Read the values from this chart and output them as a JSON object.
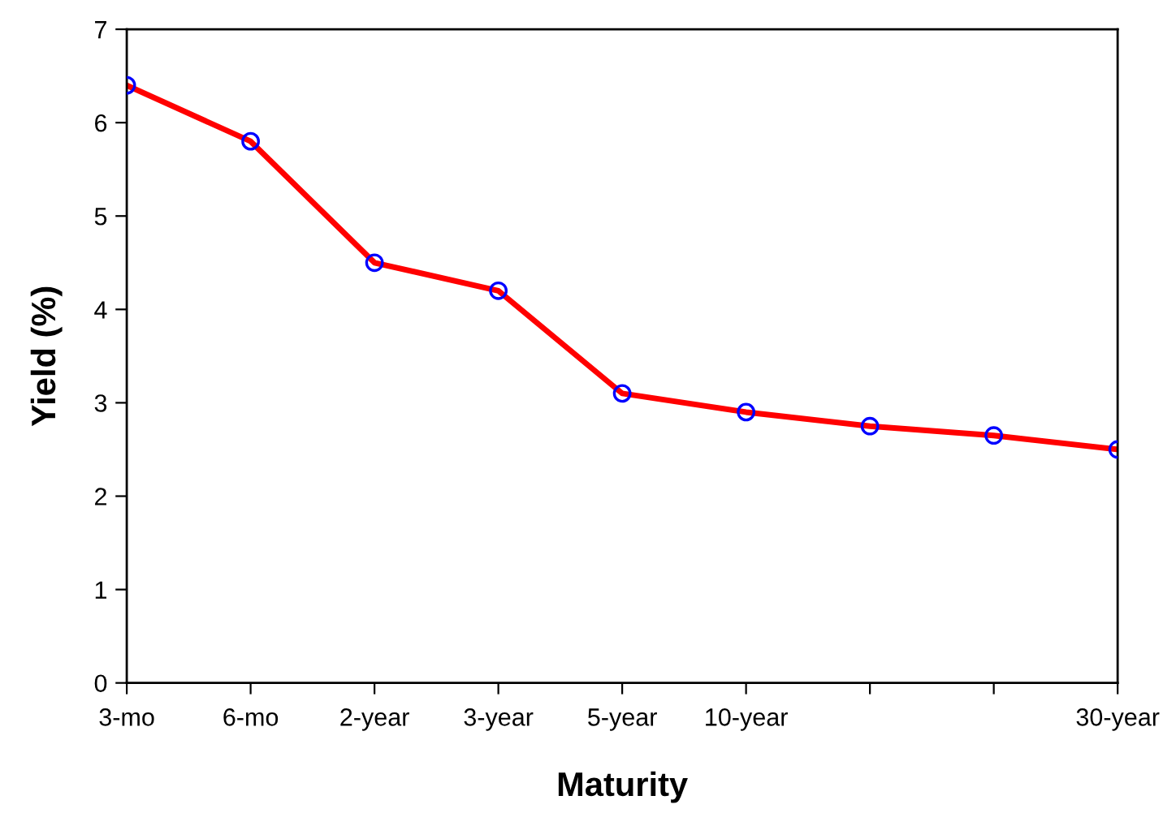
{
  "chart_data": {
    "type": "line",
    "xlabel": "Maturity",
    "ylabel": "Yield (%)",
    "categories": [
      "3-mo",
      "6-mo",
      "2-year",
      "3-year",
      "5-year",
      "10-year",
      null,
      null,
      "30-year"
    ],
    "series": [
      {
        "color": "#ff0000",
        "colors": [
          "#0000ff",
          "#0000ff",
          "#0000ff",
          "#0000ff",
          "#0000ff",
          "#0000ff",
          "#0000ff",
          "#0000ff",
          "#0000ff"
        ],
        "values": [
          6.4,
          5.8,
          4.5,
          4.2,
          3.1,
          2.9,
          2.75,
          2.65,
          2.5
        ]
      }
    ],
    "ylim": [
      0,
      7
    ],
    "yticks": [
      0,
      1,
      2,
      3,
      4,
      5,
      6,
      7
    ],
    "grid": false,
    "legend": false,
    "marker": "circle",
    "line_style": "solid"
  }
}
